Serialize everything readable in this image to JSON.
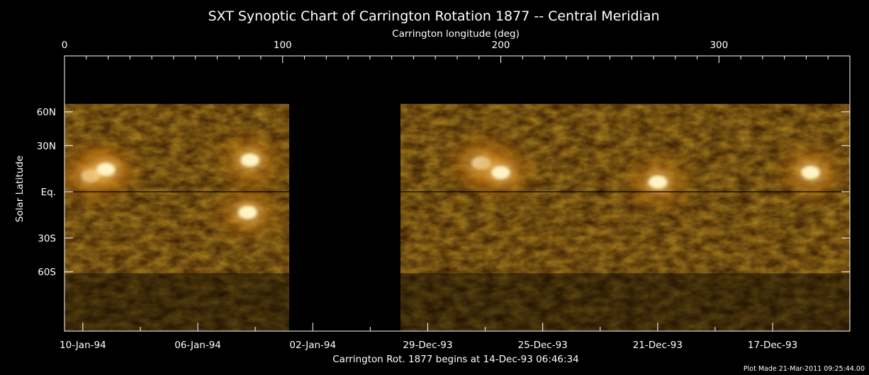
{
  "chart_data": {
    "type": "heatmap",
    "title": "SXT Synoptic Chart of Carrington Rotation 1877 -- Central Meridian",
    "x_top_label": "Carrington longitude (deg)",
    "x_top_range": [
      0,
      360
    ],
    "x_top_ticks": [
      {
        "value": 0,
        "label": "0"
      },
      {
        "value": 100,
        "label": "100"
      },
      {
        "value": 200,
        "label": "200"
      },
      {
        "value": 300,
        "label": "300"
      }
    ],
    "ylabel": "Solar Latitude",
    "y_ticks": [
      {
        "value": 60,
        "label": "60N"
      },
      {
        "value": 30,
        "label": "30N"
      },
      {
        "value": 0,
        "label": "Eq."
      },
      {
        "value": -30,
        "label": "30S"
      },
      {
        "value": -60,
        "label": "60S"
      }
    ],
    "x_bottom_ticks": [
      {
        "value": 8.4,
        "label": "10-Jan-94"
      },
      {
        "value": 61.1,
        "label": "06-Jan-94"
      },
      {
        "value": 113.8,
        "label": "02-Jan-94"
      },
      {
        "value": 166.5,
        "label": "29-Dec-93"
      },
      {
        "value": 219.2,
        "label": "25-Dec-93"
      },
      {
        "value": 271.9,
        "label": "21-Dec-93"
      },
      {
        "value": 324.6,
        "label": "17-Dec-93"
      }
    ],
    "x_bottom_label": "Carrington Rot. 1877 begins at 14-Dec-93 06:46:34",
    "data_gap_longitude": [
      103,
      154
    ],
    "active_regions": [
      {
        "lon": 12,
        "lat": 10
      },
      {
        "lon": 19,
        "lat": 14
      },
      {
        "lon": 85,
        "lat": 20
      },
      {
        "lon": 84,
        "lat": -13
      },
      {
        "lon": 191,
        "lat": 18
      },
      {
        "lon": 200,
        "lat": 12
      },
      {
        "lon": 272,
        "lat": 6
      },
      {
        "lon": 342,
        "lat": 12
      }
    ],
    "colormap": [
      "#000000",
      "#3a1c00",
      "#8a4e00",
      "#d88a18",
      "#ffe7a8",
      "#ffffff"
    ],
    "footnote": "Plot Made 21-Mar-2011 09:25:44.00"
  }
}
